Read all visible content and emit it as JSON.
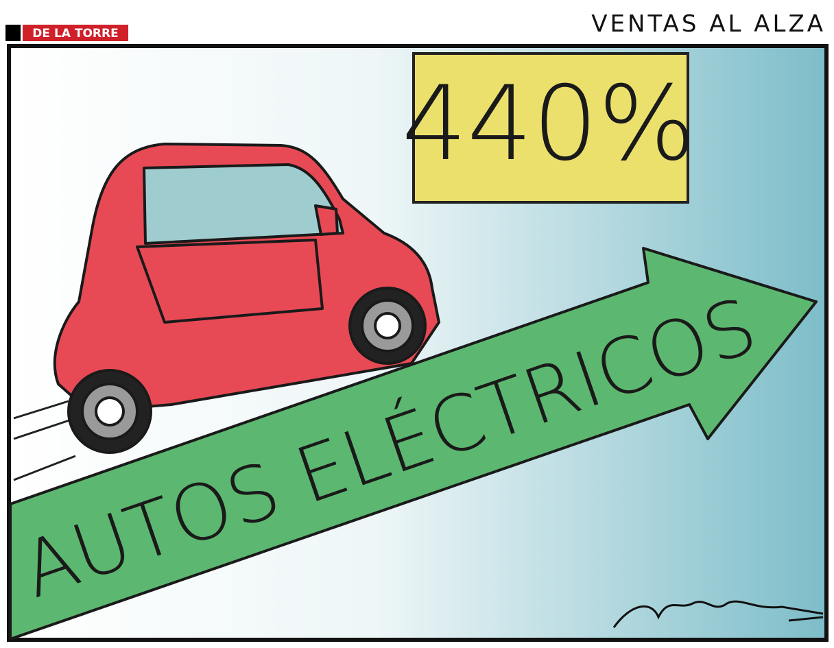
{
  "header": {
    "badge": "DE LA TORRE",
    "title": "VENTAS AL ALZA"
  },
  "sign": {
    "text": "440%"
  },
  "arrow": {
    "label": "AUTOS ELÉCTRICOS"
  }
}
